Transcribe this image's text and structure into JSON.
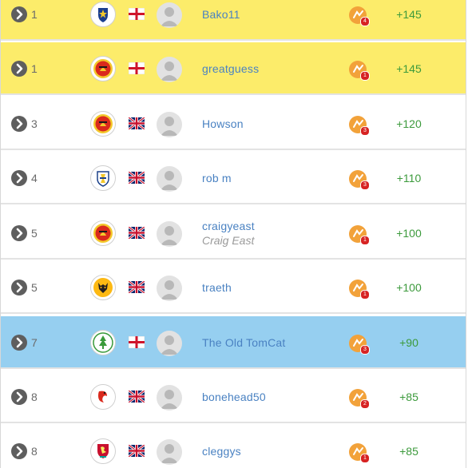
{
  "icons": {
    "row_expand": "chevron-right-icon",
    "avatar": "user-placeholder-icon",
    "badge": "prediction-coin-icon"
  },
  "colors": {
    "gold_row": "#fcec6a",
    "own_row": "#96cff0",
    "username": "#4a82c2",
    "points": "#3c9a3c",
    "badge_coin": "#f2a23a",
    "badge_count": "#d72323"
  },
  "rows": [
    {
      "rank": "1",
      "club": "portsmouth-crest-icon",
      "flag": "england-flag-icon",
      "username": "Bako11",
      "realname": "",
      "badge_count": "4",
      "points": "+145"
    },
    {
      "rank": "1",
      "club": "man-united-crest-icon",
      "flag": "england-flag-icon",
      "username": "greatguess",
      "realname": "",
      "badge_count": "1",
      "points": "+145"
    },
    {
      "rank": "3",
      "club": "man-united-crest-icon",
      "flag": "uk-flag-icon",
      "username": "Howson",
      "realname": "",
      "badge_count": "3",
      "points": "+120"
    },
    {
      "rank": "4",
      "club": "leeds-crest-icon",
      "flag": "uk-flag-icon",
      "username": "rob m",
      "realname": "",
      "badge_count": "3",
      "points": "+110"
    },
    {
      "rank": "5",
      "club": "man-united-crest-icon",
      "flag": "uk-flag-icon",
      "username": "craigyeast",
      "realname": "Craig East",
      "badge_count": "1",
      "points": "+100"
    },
    {
      "rank": "5",
      "club": "wolves-crest-icon",
      "flag": "uk-flag-icon",
      "username": "traeth",
      "realname": "",
      "badge_count": "1",
      "points": "+100"
    },
    {
      "rank": "7",
      "club": "forest-green-crest-icon",
      "flag": "england-flag-icon",
      "username": "The Old TomCat",
      "realname": "",
      "badge_count": "3",
      "points": "+90"
    },
    {
      "rank": "8",
      "club": "bournemouth-crest-icon",
      "flag": "uk-flag-icon",
      "username": "bonehead50",
      "realname": "",
      "badge_count": "2",
      "points": "+85"
    },
    {
      "rank": "8",
      "club": "liverpool-crest-icon",
      "flag": "uk-flag-icon",
      "username": "cleggys",
      "realname": "",
      "badge_count": "1",
      "points": "+85"
    }
  ]
}
